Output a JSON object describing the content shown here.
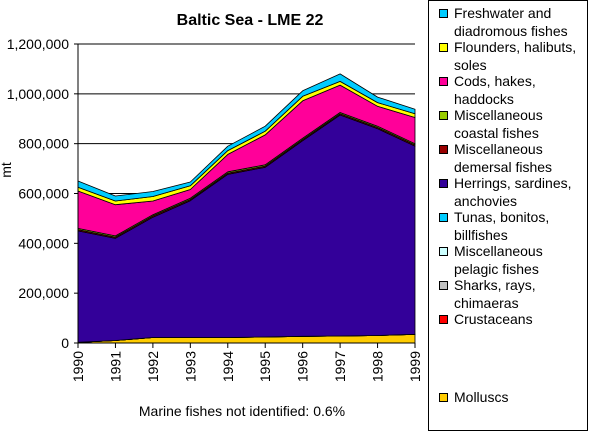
{
  "chart_data": {
    "type": "area",
    "title": "Baltic Sea - LME 22",
    "xlabel": "",
    "ylabel": "mt",
    "annotation": "Marine fishes not identified: 0.6%",
    "categories": [
      "1990",
      "1991",
      "1992",
      "1993",
      "1994",
      "1995",
      "1996",
      "1997",
      "1998",
      "1999"
    ],
    "ylim": [
      0,
      1200000
    ],
    "yticks": [
      "0",
      "200,000",
      "400,000",
      "600,000",
      "800,000",
      "1,000,000",
      "1,200,000"
    ],
    "grid": "horizontal",
    "legend_position": "right",
    "stack_order": "bottom-to-top",
    "series": [
      {
        "name": "Molluscs",
        "color": "#FFCC00",
        "values": [
          3000,
          10000,
          22000,
          22000,
          22000,
          24000,
          27000,
          28000,
          30000,
          35000
        ]
      },
      {
        "name": "Crustaceans",
        "color": "#FF0000",
        "values": [
          0,
          0,
          0,
          0,
          0,
          0,
          0,
          0,
          0,
          0
        ]
      },
      {
        "name": "Sharks, rays, chimaeras",
        "color": "#C0C0C0",
        "values": [
          0,
          0,
          0,
          0,
          0,
          0,
          0,
          0,
          0,
          0
        ]
      },
      {
        "name": "Miscellaneous pelagic fishes",
        "color": "#CCFFFF",
        "values": [
          0,
          0,
          0,
          0,
          0,
          0,
          0,
          0,
          0,
          0
        ]
      },
      {
        "name": "Tunas, bonitos, billfishes",
        "color": "#00CCFF",
        "values": [
          0,
          0,
          0,
          0,
          0,
          0,
          0,
          0,
          0,
          0
        ]
      },
      {
        "name": "Herrings, sardines, anchovies",
        "color": "#330099",
        "values": [
          447000,
          410000,
          483000,
          549000,
          655000,
          681000,
          785000,
          887000,
          830000,
          755000
        ]
      },
      {
        "name": "Miscellaneous demersal fishes",
        "color": "#990000",
        "values": [
          5000,
          5000,
          5000,
          5000,
          5000,
          5000,
          5000,
          5000,
          5000,
          5000
        ]
      },
      {
        "name": "Miscellaneous coastal fishes",
        "color": "#99CC00",
        "values": [
          5000,
          5000,
          5000,
          5000,
          5000,
          5000,
          5000,
          5000,
          5000,
          5000
        ]
      },
      {
        "name": "Cods, hakes, haddocks",
        "color": "#FF0099",
        "values": [
          150000,
          125000,
          55000,
          35000,
          70000,
          120000,
          150000,
          110000,
          80000,
          105000
        ]
      },
      {
        "name": "Flounders, halibuts, soles",
        "color": "#FFFF00",
        "values": [
          15000,
          15000,
          18000,
          15000,
          15000,
          15000,
          18000,
          15000,
          15000,
          15000
        ]
      },
      {
        "name": "Freshwater and diadromous fishes",
        "color": "#00CCFF",
        "values": [
          25000,
          20000,
          20000,
          15000,
          18000,
          20000,
          22000,
          30000,
          22000,
          18000
        ]
      }
    ],
    "legend": [
      {
        "lines": [
          "Freshwater and",
          "diadromous fishes"
        ],
        "color": "#00CCFF"
      },
      {
        "lines": [
          "Flounders, halibuts,",
          "soles"
        ],
        "color": "#FFFF00"
      },
      {
        "lines": [
          "Cods, hakes,",
          "haddocks"
        ],
        "color": "#FF0099"
      },
      {
        "lines": [
          "Miscellaneous",
          "coastal fishes"
        ],
        "color": "#99CC00"
      },
      {
        "lines": [
          "Miscellaneous",
          "demersal fishes"
        ],
        "color": "#990000"
      },
      {
        "lines": [
          "Herrings, sardines,",
          "anchovies"
        ],
        "color": "#330099"
      },
      {
        "lines": [
          "Tunas, bonitos,",
          "billfishes"
        ],
        "color": "#00CCFF"
      },
      {
        "lines": [
          "Miscellaneous",
          "pelagic fishes"
        ],
        "color": "#CCFFFF"
      },
      {
        "lines": [
          "Sharks, rays,",
          "chimaeras"
        ],
        "color": "#C0C0C0"
      },
      {
        "lines": [
          "Crustaceans"
        ],
        "color": "#FF0000"
      },
      {
        "lines": [
          "Molluscs"
        ],
        "color": "#FFCC00"
      }
    ]
  }
}
